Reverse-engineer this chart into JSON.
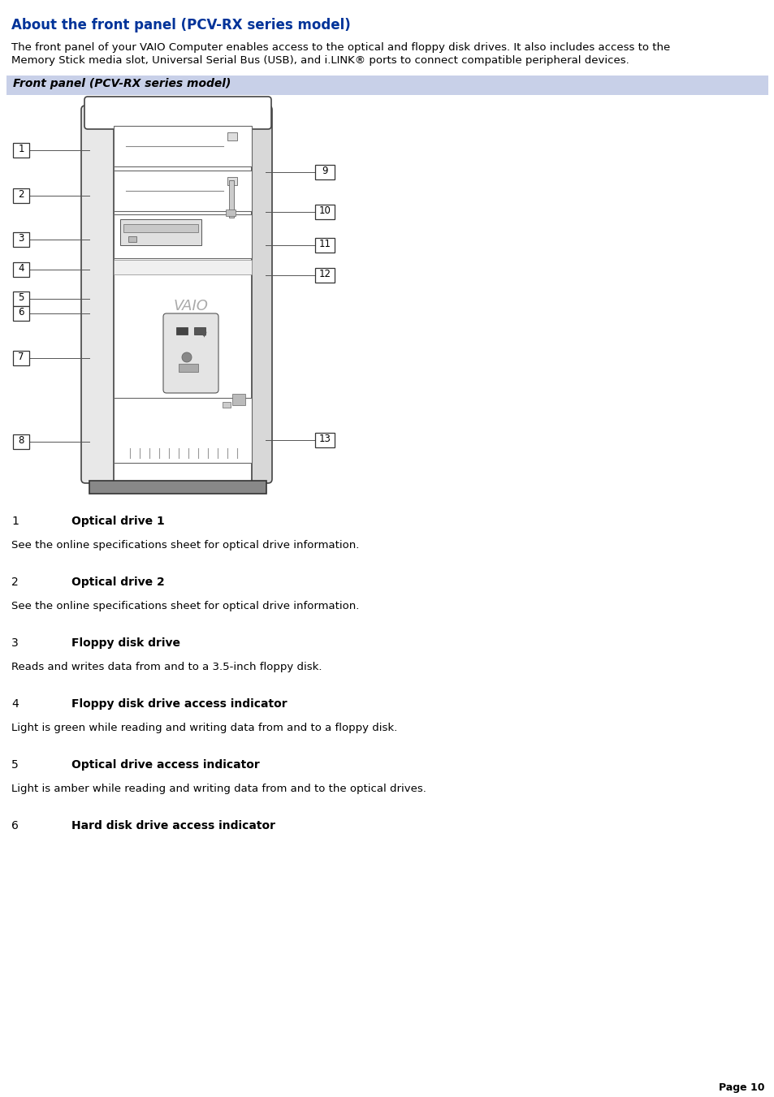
{
  "title": "About the front panel (PCV-RX series model)",
  "title_color": "#003399",
  "body_bg": "#ffffff",
  "intro_text_line1": "The front panel of your VAIO Computer enables access to the optical and floppy disk drives. It also includes access to the",
  "intro_text_line2": "Memory Stick media slot, Universal Serial Bus (USB), and i.LINK® ports to connect compatible peripheral devices.",
  "panel_label": "Front panel (PCV-RX series model)",
  "panel_label_bg": "#c8d0e8",
  "panel_label_color": "#000000",
  "items": [
    {
      "num": "1",
      "bold": "Optical drive 1",
      "desc": "See the online specifications sheet for optical drive information."
    },
    {
      "num": "2",
      "bold": "Optical drive 2",
      "desc": "See the online specifications sheet for optical drive information."
    },
    {
      "num": "3",
      "bold": "Floppy disk drive",
      "desc": "Reads and writes data from and to a 3.5-inch floppy disk."
    },
    {
      "num": "4",
      "bold": "Floppy disk drive access indicator",
      "desc": "Light is green while reading and writing data from and to a floppy disk."
    },
    {
      "num": "5",
      "bold": "Optical drive access indicator",
      "desc": "Light is amber while reading and writing data from and to the optical drives."
    },
    {
      "num": "6",
      "bold": "Hard disk drive access indicator",
      "desc": ""
    }
  ],
  "page_label": "Page 10",
  "text_color": "#000000",
  "font_size_title": 12,
  "font_size_body": 9.5,
  "font_size_item_num": 10,
  "font_size_item_bold": 10,
  "font_size_panel_label": 10
}
